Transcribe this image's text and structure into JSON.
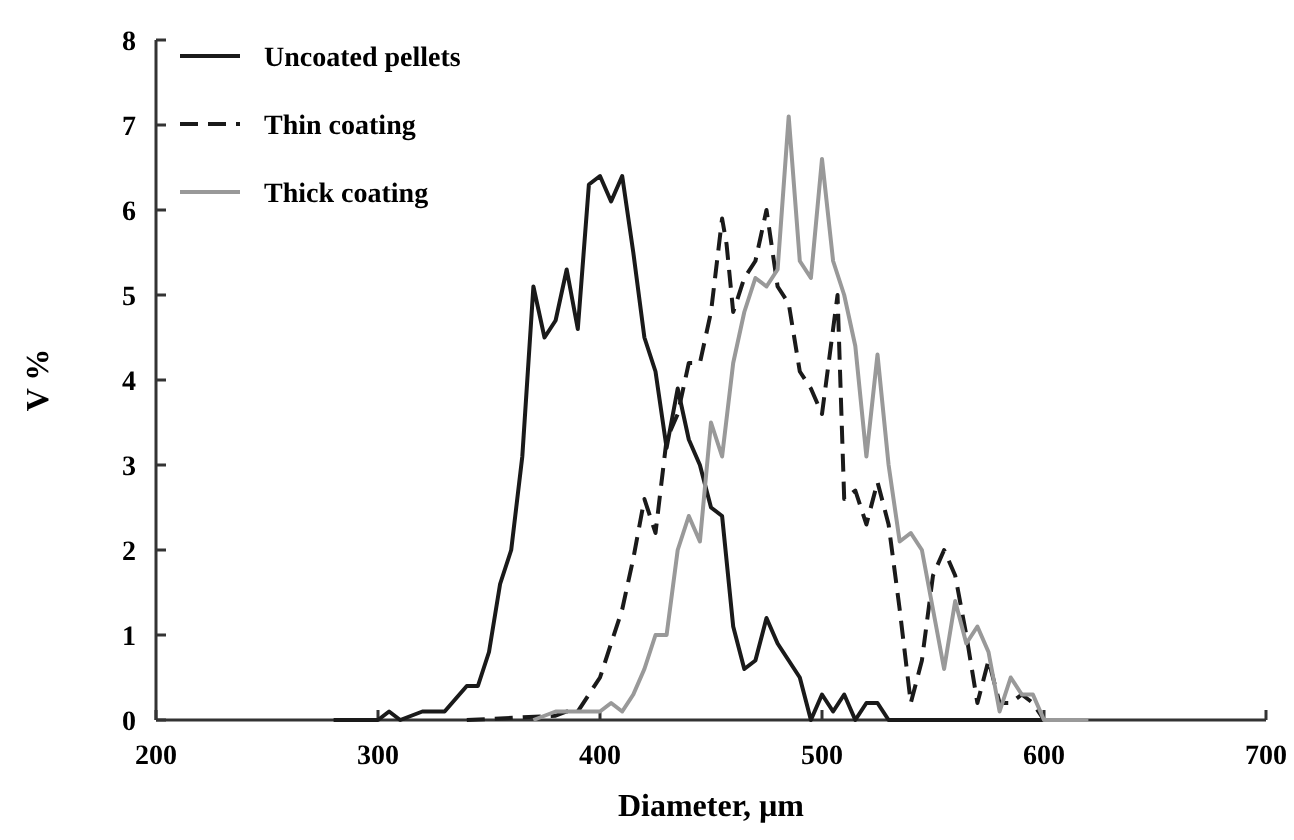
{
  "chart_data": {
    "type": "line",
    "xlabel": "Diameter, µm",
    "ylabel": "V %",
    "xlim": [
      200,
      700
    ],
    "xticks": [
      200,
      300,
      400,
      500,
      600,
      700
    ],
    "ylim": [
      0,
      8
    ],
    "yticks": [
      0,
      1,
      2,
      3,
      4,
      5,
      6,
      7,
      8
    ],
    "grid": false,
    "legend": "top left",
    "marker": "none",
    "series": [
      {
        "name": "Uncoated pellets",
        "color": "#1a1a1a",
        "line_style": "solid",
        "x": [
          280,
          300,
          305,
          310,
          320,
          330,
          340,
          345,
          350,
          355,
          360,
          365,
          370,
          375,
          380,
          385,
          390,
          395,
          400,
          405,
          410,
          415,
          420,
          425,
          430,
          435,
          440,
          445,
          450,
          455,
          460,
          465,
          470,
          475,
          480,
          485,
          490,
          495,
          500,
          505,
          510,
          515,
          520,
          525,
          530,
          600
        ],
        "values": [
          0,
          0,
          0.1,
          0,
          0.1,
          0.1,
          0.4,
          0.4,
          0.8,
          1.6,
          2.0,
          3.1,
          5.1,
          4.5,
          4.7,
          5.3,
          4.6,
          6.3,
          6.4,
          6.1,
          6.4,
          5.5,
          4.5,
          4.1,
          3.2,
          3.9,
          3.3,
          3.0,
          2.5,
          2.4,
          1.1,
          0.6,
          0.7,
          1.2,
          0.9,
          0.7,
          0.5,
          0,
          0.3,
          0.1,
          0.3,
          0,
          0.2,
          0.2,
          0,
          0
        ]
      },
      {
        "name": "Thin coating",
        "color": "#1a1a1a",
        "line_style": "dashed",
        "x": [
          340,
          380,
          385,
          390,
          395,
          400,
          405,
          410,
          415,
          420,
          425,
          430,
          435,
          440,
          445,
          450,
          455,
          457,
          460,
          465,
          470,
          475,
          480,
          485,
          490,
          495,
          500,
          505,
          507,
          510,
          515,
          520,
          525,
          530,
          535,
          540,
          545,
          550,
          555,
          560,
          565,
          570,
          575,
          580,
          585,
          590,
          595,
          600
        ],
        "values": [
          0,
          0.05,
          0.1,
          0.1,
          0.3,
          0.5,
          0.9,
          1.3,
          1.9,
          2.6,
          2.2,
          3.3,
          3.6,
          4.2,
          4.2,
          4.8,
          5.9,
          5.6,
          4.8,
          5.2,
          5.4,
          6.0,
          5.1,
          4.9,
          4.1,
          3.9,
          3.6,
          4.6,
          5.0,
          2.6,
          2.7,
          2.3,
          2.8,
          2.3,
          1.3,
          0.2,
          0.7,
          1.7,
          2.0,
          1.7,
          1.0,
          0.2,
          0.7,
          0.2,
          0.2,
          0.3,
          0.2,
          0
        ]
      },
      {
        "name": "Thick coating",
        "color": "#999999",
        "line_style": "solid",
        "x": [
          370,
          380,
          390,
          400,
          405,
          410,
          415,
          420,
          425,
          430,
          435,
          440,
          445,
          450,
          455,
          460,
          465,
          470,
          475,
          480,
          485,
          490,
          495,
          500,
          505,
          510,
          515,
          520,
          525,
          530,
          535,
          540,
          545,
          550,
          555,
          560,
          565,
          570,
          575,
          580,
          585,
          590,
          595,
          600,
          620
        ],
        "values": [
          0,
          0.1,
          0.1,
          0.1,
          0.2,
          0.1,
          0.3,
          0.6,
          1.0,
          1.0,
          2.0,
          2.4,
          2.1,
          3.5,
          3.1,
          4.2,
          4.8,
          5.2,
          5.1,
          5.3,
          7.1,
          5.4,
          5.2,
          6.6,
          5.4,
          5.0,
          4.4,
          3.1,
          4.3,
          3.0,
          2.1,
          2.2,
          2.0,
          1.3,
          0.6,
          1.4,
          0.9,
          1.1,
          0.8,
          0.1,
          0.5,
          0.3,
          0.3,
          0,
          0
        ]
      }
    ]
  }
}
